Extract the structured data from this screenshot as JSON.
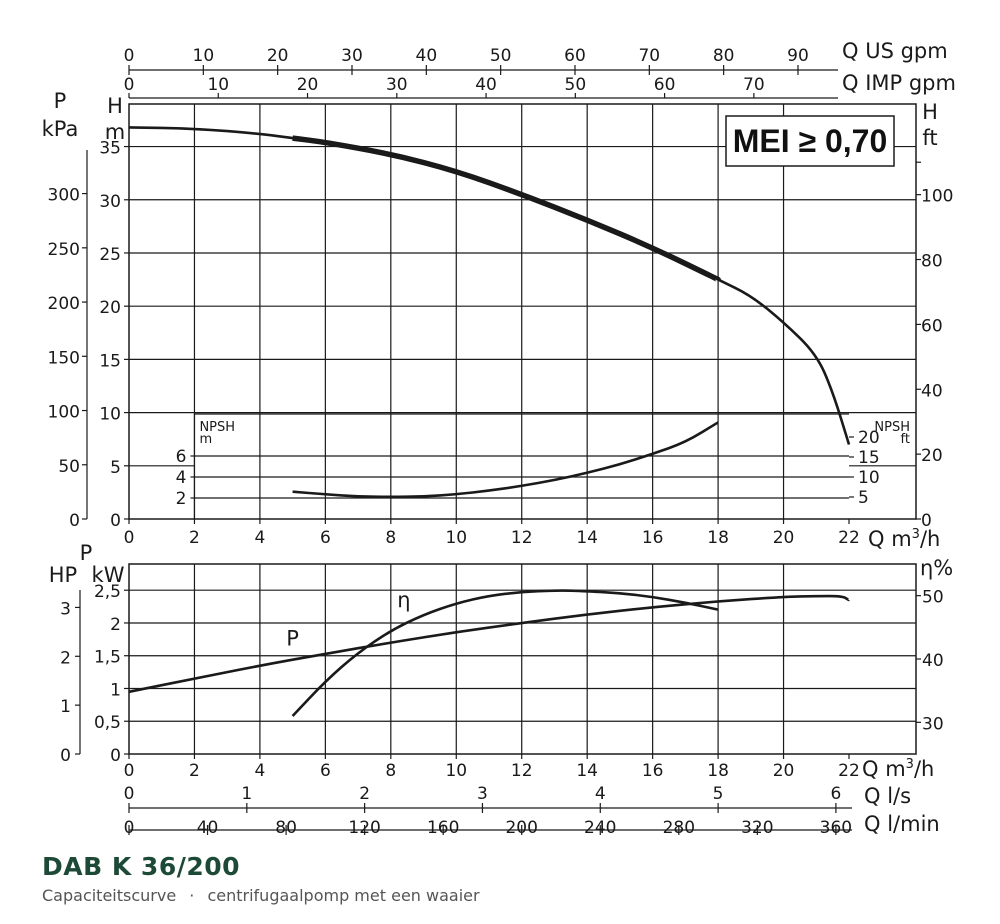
{
  "product_title": "DAB K 36/200",
  "subtitle": {
    "left": "Capaciteitscurve",
    "separator": "·",
    "right": "centrifugaalpomp met een waaier"
  },
  "badge": {
    "label": "MEI ≥ 0,70"
  },
  "chart_data": [
    {
      "type": "line",
      "name": "head-npsh-chart",
      "grid": true,
      "x_axis": {
        "label": "Q m³/h",
        "unit_label": "Q m",
        "unit_sup": "3",
        "unit_suffix": "/h",
        "range": [
          0,
          22
        ],
        "ticks": [
          0,
          2,
          4,
          6,
          8,
          10,
          12,
          14,
          16,
          18,
          20,
          22
        ]
      },
      "secondary_x_axes": [
        {
          "label": "Q US gpm",
          "ticks": [
            0,
            10,
            20,
            30,
            40,
            50,
            60,
            70,
            80,
            90
          ]
        },
        {
          "label": "Q IMP gpm",
          "ticks": [
            0,
            10,
            20,
            30,
            40,
            50,
            60,
            70
          ]
        }
      ],
      "y_axis_left": {
        "label_top": "H",
        "label_unit": "m",
        "range": [
          0,
          39
        ],
        "ticks": [
          0,
          5,
          10,
          15,
          20,
          25,
          30,
          35
        ]
      },
      "y_axis_pressure": {
        "label_top": "P",
        "label_unit": "kPa",
        "ticks": [
          0,
          50,
          100,
          150,
          200,
          250,
          300
        ]
      },
      "y_axis_right": {
        "label_top": "H",
        "label_unit": "ft",
        "ticks": [
          0,
          20,
          40,
          60,
          80,
          100
        ]
      },
      "npsh_axis_left": {
        "label": "NPSH",
        "unit": "m",
        "range": [
          0,
          10
        ],
        "ticks": [
          2,
          4,
          6
        ]
      },
      "npsh_axis_right": {
        "label": "NPSH",
        "unit": "ft",
        "ticks": [
          5,
          10,
          15,
          20
        ]
      },
      "series": [
        {
          "role": "head",
          "x": [
            0,
            2,
            4,
            5,
            6,
            8,
            10,
            12,
            14,
            16,
            18,
            19,
            20,
            21,
            21.5,
            22
          ],
          "y": [
            36.8,
            36.7,
            36.2,
            35.8,
            35.4,
            34.3,
            32.7,
            30.5,
            28.1,
            25.5,
            22.5,
            21.0,
            18.5,
            15.5,
            12.0,
            7.0
          ],
          "bold_range": [
            5,
            18
          ]
        },
        {
          "role": "npsh",
          "x": [
            5,
            6,
            7,
            8,
            9,
            10,
            11,
            12,
            13,
            14,
            15,
            16,
            17,
            18
          ],
          "y": [
            2.6,
            2.35,
            2.15,
            2.1,
            2.15,
            2.35,
            2.7,
            3.15,
            3.7,
            4.4,
            5.2,
            6.2,
            7.3,
            9.2
          ]
        }
      ]
    },
    {
      "type": "line",
      "name": "power-efficiency-chart",
      "grid": true,
      "x_axis": {
        "label": "Q m³/h",
        "unit_label": "Q m",
        "unit_sup": "3",
        "unit_suffix": "/h",
        "range": [
          0,
          22
        ],
        "ticks": [
          0,
          2,
          4,
          6,
          8,
          10,
          12,
          14,
          16,
          18,
          20,
          22
        ]
      },
      "secondary_x_axes": [
        {
          "label": "Q l/s",
          "ticks": [
            0,
            1,
            2,
            3,
            4,
            5,
            6
          ]
        },
        {
          "label": "Q l/min",
          "ticks": [
            0,
            40,
            80,
            120,
            160,
            200,
            240,
            280,
            320,
            360
          ]
        }
      ],
      "y_axis_left": {
        "label_top": "P",
        "label_unit": "kW",
        "range": [
          0,
          2.9
        ],
        "ticks": [
          0,
          0.5,
          1,
          1.5,
          2,
          2.5
        ],
        "tick_labels": [
          "0",
          "0,5",
          "1",
          "1,5",
          "2",
          "2,5"
        ]
      },
      "y_axis_hp": {
        "label": "HP",
        "ticks": [
          0,
          1,
          2,
          3
        ]
      },
      "y_axis_right": {
        "label": "η%",
        "range": [
          25,
          55
        ],
        "ticks": [
          30,
          40,
          50
        ]
      },
      "series": [
        {
          "name": "P",
          "role": "power",
          "x": [
            0,
            2,
            4,
            6,
            8,
            10,
            12,
            14,
            16,
            18,
            20,
            21,
            21.8,
            22
          ],
          "y": [
            0.95,
            1.15,
            1.35,
            1.53,
            1.7,
            1.86,
            2.0,
            2.13,
            2.24,
            2.33,
            2.4,
            2.41,
            2.41,
            2.35
          ]
        },
        {
          "name": "η",
          "role": "efficiency",
          "x": [
            5,
            6,
            7,
            8,
            9,
            10,
            11,
            12,
            13,
            13.5,
            14,
            15,
            16,
            17,
            18
          ],
          "y": [
            31.0,
            36.5,
            41.0,
            44.5,
            47.0,
            48.8,
            50.0,
            50.6,
            50.8,
            50.8,
            50.7,
            50.4,
            49.8,
            48.9,
            47.8
          ]
        }
      ]
    }
  ]
}
